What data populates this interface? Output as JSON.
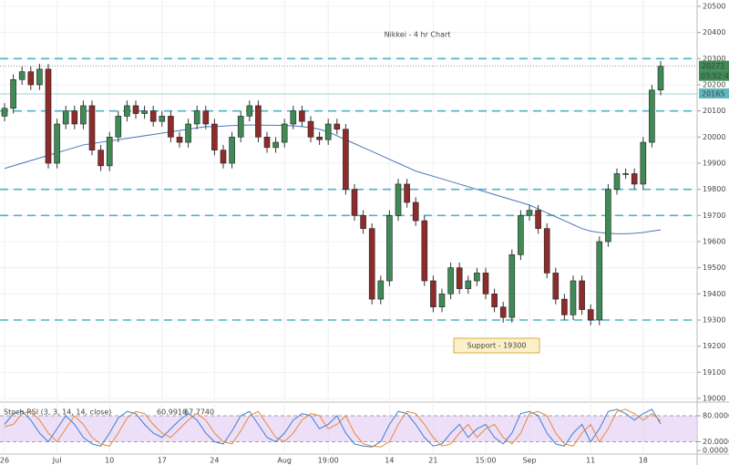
{
  "chart_data": [
    {
      "type": "candlestick",
      "title": "Nikkei - 4 hr Chart",
      "categories": [
        "26",
        null,
        null,
        null,
        null,
        null,
        "Jul",
        null,
        null,
        null,
        null,
        null,
        "10",
        null,
        null,
        null,
        null,
        null,
        "17",
        null,
        null,
        null,
        null,
        null,
        "24",
        null,
        null,
        null,
        null,
        null,
        null,
        null,
        "Aug",
        null,
        null,
        null,
        null,
        "19:00",
        null,
        null,
        null,
        null,
        null,
        null,
        "14",
        null,
        null,
        null,
        null,
        "21",
        null,
        null,
        null,
        null,
        null,
        "15:00",
        null,
        null,
        null,
        null,
        "Sep",
        null,
        null,
        null,
        null,
        null,
        null,
        "11",
        null,
        null,
        null,
        null,
        null,
        "18",
        null,
        null
      ],
      "open": [
        20080,
        20110,
        20220,
        20250,
        20200,
        20260,
        19900,
        20050,
        20100,
        20050,
        20120,
        19950,
        19890,
        20000,
        20080,
        20120,
        20090,
        20100,
        20060,
        20080,
        20000,
        19980,
        20050,
        20100,
        20050,
        19950,
        19900,
        20000,
        20080,
        20120,
        20000,
        19960,
        19980,
        20050,
        20100,
        20060,
        20000,
        19990,
        20050,
        20030,
        19800,
        19700,
        19650,
        19380,
        19450,
        19700,
        19820,
        19750,
        19680,
        19450,
        19350,
        19400,
        19500,
        19420,
        19450,
        19480,
        19400,
        19350,
        19310,
        19550,
        19700,
        19720,
        19650,
        19480,
        19380,
        19320,
        19450,
        19340,
        19300,
        19600,
        19800,
        19860,
        19860,
        19820,
        19980,
        20180
      ],
      "high": [
        20130,
        20240,
        20270,
        20270,
        20280,
        20280,
        20070,
        20120,
        20120,
        20140,
        20140,
        19970,
        20020,
        20100,
        20140,
        20140,
        20120,
        20120,
        20100,
        20100,
        20020,
        20070,
        20120,
        20120,
        20070,
        19970,
        20020,
        20100,
        20140,
        20140,
        20020,
        20000,
        20070,
        20120,
        20120,
        20080,
        20020,
        20070,
        20070,
        20050,
        19820,
        19720,
        19670,
        19470,
        19720,
        19840,
        19840,
        19770,
        19700,
        19470,
        19420,
        19520,
        19520,
        19470,
        19500,
        19500,
        19420,
        19370,
        19570,
        19720,
        19740,
        19740,
        19670,
        19500,
        19400,
        19470,
        19470,
        19360,
        19620,
        19820,
        19880,
        19880,
        19880,
        20000,
        20200,
        20291
      ],
      "low": [
        20060,
        20090,
        20200,
        20180,
        20180,
        19880,
        19880,
        20030,
        20030,
        20030,
        19930,
        19870,
        19870,
        19980,
        20060,
        20070,
        20070,
        20040,
        20040,
        19980,
        19960,
        19960,
        20030,
        20030,
        19930,
        19880,
        19880,
        19980,
        20060,
        19980,
        19940,
        19940,
        19960,
        20030,
        20040,
        19980,
        19970,
        19970,
        20010,
        19780,
        19680,
        19630,
        19360,
        19360,
        19430,
        19680,
        19730,
        19660,
        19430,
        19330,
        19330,
        19380,
        19400,
        19400,
        19430,
        19380,
        19330,
        19290,
        19290,
        19530,
        19680,
        19630,
        19460,
        19360,
        19300,
        19300,
        19320,
        19280,
        19280,
        19580,
        19780,
        19840,
        19800,
        19800,
        19960,
        20160
      ],
      "close": [
        20110,
        20220,
        20250,
        20200,
        20260,
        19900,
        20050,
        20100,
        20050,
        20120,
        19950,
        19890,
        20000,
        20080,
        20120,
        20090,
        20100,
        20060,
        20080,
        20000,
        19980,
        20050,
        20100,
        20050,
        19950,
        19900,
        20000,
        20080,
        20120,
        20000,
        19960,
        19980,
        20050,
        20100,
        20060,
        20000,
        19990,
        20050,
        20030,
        19800,
        19700,
        19650,
        19380,
        19450,
        19700,
        19820,
        19750,
        19680,
        19450,
        19350,
        19400,
        19500,
        19420,
        19450,
        19480,
        19400,
        19350,
        19310,
        19550,
        19700,
        19720,
        19650,
        19480,
        19380,
        19320,
        19450,
        19340,
        19300,
        19600,
        19800,
        19860,
        19860,
        19820,
        19980,
        20180,
        20271
      ],
      "up_color": "#3f8a55",
      "down_color": "#8e2b2b",
      "ma": [
        19880,
        19890,
        19900,
        19910,
        19920,
        19930,
        19940,
        19950,
        19960,
        19970,
        19975,
        19980,
        19985,
        19990,
        19995,
        20000,
        20005,
        20010,
        20015,
        20020,
        20025,
        20030,
        20035,
        20040,
        20040,
        20042,
        20044,
        20045,
        20046,
        20046,
        20045,
        20045,
        20044,
        20043,
        20040,
        20036,
        20030,
        20020,
        20005,
        19990,
        19975,
        19960,
        19945,
        19930,
        19915,
        19900,
        19885,
        19870,
        19860,
        19850,
        19840,
        19830,
        19820,
        19810,
        19800,
        19790,
        19780,
        19770,
        19760,
        19750,
        19740,
        19725,
        19710,
        19695,
        19680,
        19665,
        19650,
        19640,
        19635,
        19632,
        19630,
        19630,
        19632,
        19635,
        19640,
        19645
      ],
      "ma_color": "#4a78b8",
      "levels": [
        20300,
        20100,
        19800,
        19700,
        19300
      ],
      "level_color": "#4fb3c4",
      "annotation": "Support - 19300",
      "last_price": 20271,
      "countdown": "03:52:46",
      "marked_price": 20165,
      "ylim": [
        19000,
        20500
      ],
      "yticks": [
        19000,
        19100,
        19200,
        19300,
        19400,
        19500,
        19600,
        19700,
        19800,
        19900,
        20000,
        20100,
        20200,
        20300,
        20400,
        20500
      ],
      "grid": true
    },
    {
      "type": "line",
      "title": "Stoch RSI (3, 3, 14, 14, close)",
      "series": [
        {
          "name": "60.9910",
          "color": "#3d7fd0",
          "values": [
            60,
            85,
            90,
            70,
            40,
            20,
            50,
            80,
            60,
            30,
            15,
            10,
            40,
            75,
            90,
            85,
            60,
            40,
            30,
            50,
            70,
            85,
            70,
            40,
            20,
            15,
            45,
            80,
            90,
            60,
            30,
            20,
            40,
            70,
            85,
            80,
            50,
            60,
            80,
            40,
            15,
            10,
            8,
            20,
            60,
            90,
            85,
            60,
            30,
            10,
            15,
            40,
            60,
            30,
            50,
            60,
            30,
            15,
            40,
            85,
            90,
            80,
            40,
            15,
            10,
            40,
            60,
            20,
            50,
            90,
            95,
            85,
            70,
            85,
            95,
            61
          ]
        },
        {
          "name": "67.7740",
          "color": "#e58a3c",
          "values": [
            55,
            60,
            85,
            90,
            70,
            40,
            20,
            50,
            80,
            60,
            30,
            15,
            10,
            40,
            75,
            90,
            85,
            60,
            40,
            30,
            50,
            70,
            85,
            70,
            40,
            20,
            15,
            45,
            80,
            90,
            60,
            30,
            20,
            40,
            70,
            85,
            80,
            50,
            60,
            80,
            40,
            15,
            10,
            8,
            20,
            60,
            90,
            85,
            60,
            30,
            10,
            15,
            40,
            60,
            30,
            50,
            60,
            30,
            15,
            40,
            85,
            90,
            80,
            40,
            15,
            10,
            40,
            60,
            20,
            50,
            90,
            95,
            85,
            70,
            85,
            68
          ]
        }
      ],
      "band": [
        20,
        80
      ],
      "band_color": "#e3c9f3",
      "ylim": [
        0,
        100
      ],
      "yticks": [
        {
          "value": 80,
          "label": "80.0000"
        },
        {
          "value": 20,
          "label": "20.0000"
        },
        {
          "value": 0,
          "label": "0.0000"
        }
      ]
    }
  ]
}
